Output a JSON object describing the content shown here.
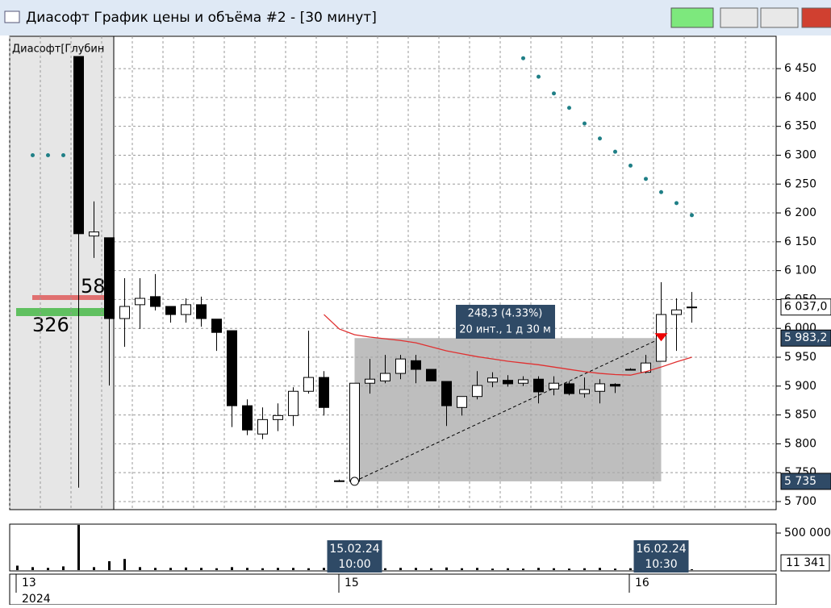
{
  "window": {
    "title": "Диасофт График цены и объёма #2 - [30 минут]"
  },
  "chart_data": {
    "type": "candlestick",
    "categories": [
      null,
      null,
      null,
      null,
      null,
      null,
      null,
      null,
      null,
      null,
      null,
      null,
      null,
      null,
      null,
      null,
      null,
      null,
      null,
      null,
      null,
      null,
      null,
      null,
      null,
      null,
      null,
      null,
      null,
      null,
      null,
      null,
      null,
      null,
      null,
      null,
      null,
      null,
      null,
      null,
      null,
      null,
      null,
      null,
      null,
      null,
      null,
      null,
      null,
      null
    ],
    "open": [
      null,
      null,
      null,
      null,
      6471,
      6160,
      6157,
      6017,
      6041,
      6055,
      6038,
      6024,
      6041,
      6016,
      5996,
      5866,
      5817,
      5842,
      5849,
      5891,
      5915,
      5736,
      5735,
      5905,
      5909,
      5922,
      5944,
      5929,
      5908,
      5863,
      5882,
      5907,
      5910,
      5905,
      5912,
      5895,
      5904,
      5887,
      5891,
      5903,
      5929,
      5924,
      5943,
      6024,
      6037,
      null,
      null,
      null,
      null,
      null
    ],
    "high": [
      null,
      null,
      null,
      null,
      6471,
      6220,
      6157,
      6087,
      6087,
      6094,
      6038,
      6052,
      6055,
      6016,
      5996,
      5877,
      5863,
      5870,
      5898,
      5996,
      5926,
      5738,
      5905,
      5947,
      5954,
      5954,
      5954,
      5929,
      5908,
      5882,
      5926,
      5924,
      5919,
      5917,
      5917,
      5917,
      5908,
      5915,
      5912,
      5905,
      5931,
      5954,
      6080,
      6052,
      6063,
      null,
      null,
      null,
      null,
      null
    ],
    "low": [
      null,
      null,
      null,
      null,
      5724,
      6122,
      5901,
      5968,
      5999,
      6031,
      6010,
      6010,
      6003,
      5961,
      5829,
      5815,
      5808,
      5822,
      5831,
      5887,
      5849,
      5734,
      5731,
      5887,
      5905,
      5912,
      5905,
      5909,
      5831,
      5849,
      5877,
      5898,
      5899,
      5900,
      5870,
      5884,
      5884,
      5880,
      5870,
      5888,
      5927,
      5922,
      5943,
      5961,
      6010,
      null,
      null,
      null,
      null,
      null
    ],
    "close": [
      null,
      null,
      null,
      null,
      6164,
      6167,
      6017,
      6038,
      6052,
      6038,
      6024,
      6041,
      6017,
      5993,
      5866,
      5824,
      5842,
      5849,
      5891,
      5915,
      5863,
      5736,
      5905,
      5912,
      5922,
      5947,
      5929,
      5909,
      5866,
      5882,
      5901,
      5914,
      5904,
      5911,
      5890,
      5905,
      5887,
      5894,
      5904,
      5900,
      5929,
      5940,
      6024,
      6032,
      6037,
      null,
      null,
      null,
      null,
      null
    ],
    "up_color": "#ffffff",
    "down_color": "#000000",
    "ylim": [
      5686,
      6506
    ],
    "yticks": [
      {
        "value": 5700,
        "label": "5 700"
      },
      {
        "value": 5750,
        "label": "5 750"
      },
      {
        "value": 5800,
        "label": "5 800"
      },
      {
        "value": 5850,
        "label": "5 850"
      },
      {
        "value": 5900,
        "label": "5 900"
      },
      {
        "value": 5950,
        "label": "5 950"
      },
      {
        "value": 6000,
        "label": "6 000"
      },
      {
        "value": 6050,
        "label": "6 050"
      },
      {
        "value": 6100,
        "label": "6 100"
      },
      {
        "value": 6150,
        "label": "6 150"
      },
      {
        "value": 6200,
        "label": "6 200"
      },
      {
        "value": 6250,
        "label": "6 250"
      },
      {
        "value": 6300,
        "label": "6 300"
      },
      {
        "value": 6350,
        "label": "6 350"
      },
      {
        "value": 6400,
        "label": "6 400"
      },
      {
        "value": 6450,
        "label": "6 450"
      }
    ],
    "grid": true,
    "dots": {
      "color": "#1f7f86",
      "values": [
        null,
        6300,
        6300,
        6300,
        null,
        null,
        null,
        null,
        null,
        null,
        null,
        null,
        null,
        null,
        null,
        null,
        null,
        null,
        null,
        null,
        null,
        null,
        null,
        null,
        null,
        null,
        null,
        null,
        null,
        null,
        null,
        null,
        null,
        6468,
        6436,
        6407,
        6382,
        6355,
        6329,
        6306,
        6282,
        6259,
        6236,
        6217,
        6196,
        null,
        null,
        null,
        null,
        null
      ]
    },
    "average": {
      "color": "#e03030",
      "values": [
        null,
        null,
        null,
        null,
        null,
        null,
        null,
        null,
        null,
        null,
        null,
        null,
        null,
        null,
        null,
        null,
        null,
        null,
        null,
        null,
        6024,
        5999,
        5989,
        5985,
        5982,
        5979,
        5975,
        5968,
        5961,
        5956,
        5951,
        5947,
        5943,
        5940,
        5937,
        5933,
        5929,
        5925,
        5922,
        5920,
        5919,
        5925,
        5933,
        5942,
        5950,
        null,
        null,
        null,
        null,
        null
      ]
    },
    "price_labels": [
      {
        "value": 6037,
        "label": "6 037,0"
      },
      {
        "value": 5983.2,
        "label": "5 983,2"
      },
      {
        "value": 5735,
        "label": "5 735"
      }
    ],
    "measure": {
      "lines": [
        "248,3 (4.33%)",
        "20 инт., 1 д 30 м"
      ]
    },
    "depth_panel": {
      "title": "Диасофт[Глубин",
      "labels": [
        "58",
        "326"
      ]
    },
    "volume": {
      "color": "#000000",
      "values": [
        60000,
        40000,
        30000,
        50000,
        610000,
        40000,
        120000,
        150000,
        40000,
        30000,
        30000,
        35000,
        30000,
        25000,
        40000,
        30000,
        25000,
        30000,
        30000,
        25000,
        30000,
        20000,
        60000,
        30000,
        25000,
        30000,
        30000,
        25000,
        35000,
        25000,
        30000,
        20000,
        25000,
        20000,
        30000,
        25000,
        20000,
        25000,
        30000,
        20000,
        25000,
        30000,
        50000,
        30000,
        11341,
        null,
        null,
        null,
        null,
        null
      ],
      "ylim": [
        0,
        620000
      ],
      "yticks": [
        {
          "value": 500000,
          "label": "500 000"
        }
      ],
      "current_label": "11 341"
    },
    "time_markers": [
      {
        "date": "15.02.24",
        "time": "10:00"
      },
      {
        "date": "16.02.24",
        "time": "10:30"
      }
    ],
    "date_axis": {
      "days": [
        "13",
        "15",
        "16"
      ],
      "year": "2024"
    }
  }
}
